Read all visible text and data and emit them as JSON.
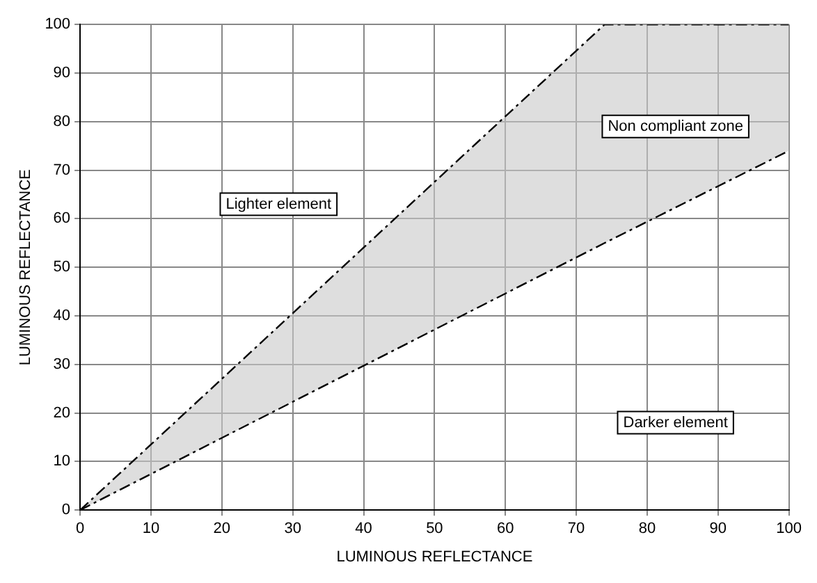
{
  "chart_data": {
    "type": "line",
    "xlabel": "LUMINOUS REFLECTANCE",
    "ylabel": "LUMINOUS REFLECTANCE",
    "x": [
      0,
      74,
      100
    ],
    "series": [
      {
        "color": "#000000",
        "values": [
          0,
          100,
          100
        ]
      },
      {
        "color": "#000000",
        "values": [
          0,
          55,
          74
        ]
      }
    ],
    "xlim": [
      0,
      100
    ],
    "xticks": [
      0,
      10,
      20,
      30,
      40,
      50,
      60,
      70,
      80,
      90,
      100
    ],
    "ylim": [
      0,
      100
    ],
    "yticks": [
      0,
      10,
      20,
      30,
      40,
      50,
      60,
      70,
      80,
      90,
      100
    ],
    "grid": true,
    "marker": "none",
    "line_style": "dashed",
    "annotations": [
      "Non compliant zone",
      "Lighter element",
      "Darker element"
    ]
  }
}
